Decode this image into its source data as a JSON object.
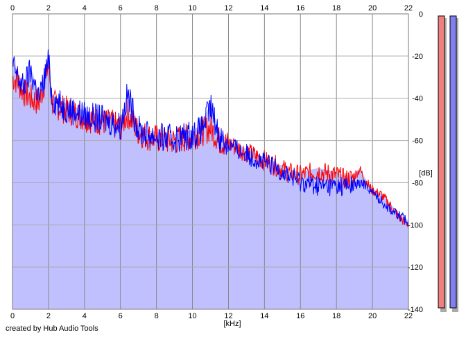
{
  "credit": "created by Hub Audio Tools",
  "chart_data": {
    "type": "area",
    "xlabel": "[kHz]",
    "ylabel": "[dB]",
    "xlim": [
      0,
      22
    ],
    "ylim": [
      -140,
      0
    ],
    "x_ticks": [
      0,
      2,
      4,
      6,
      8,
      10,
      12,
      14,
      16,
      18,
      20,
      22
    ],
    "y_ticks": [
      0,
      -20,
      -40,
      -60,
      -80,
      -100,
      -120,
      -140
    ],
    "grid": true,
    "fill_color": "#c0c0ff",
    "series": [
      {
        "color": "#ff0000",
        "x": [
          0.0,
          0.3,
          0.6,
          1.0,
          1.5,
          2.0,
          2.2,
          2.8,
          3.5,
          4.0,
          4.5,
          5.0,
          5.5,
          6.0,
          6.4,
          7.0,
          7.5,
          8.0,
          8.5,
          9.0,
          9.5,
          10.0,
          10.5,
          11.0,
          11.5,
          12.0,
          12.5,
          13.0,
          13.5,
          14.0,
          14.5,
          15.0,
          15.5,
          16.0,
          16.5,
          17.0,
          17.5,
          18.0,
          18.5,
          19.0,
          19.3,
          19.6,
          20.0,
          20.5,
          21.0,
          21.5,
          22.0
        ],
        "values": [
          -28,
          -30,
          -35,
          -38,
          -40,
          -22,
          -40,
          -43,
          -45,
          -47,
          -48,
          -49,
          -50,
          -52,
          -45,
          -54,
          -56,
          -57,
          -58,
          -58,
          -57,
          -56,
          -54,
          -52,
          -58,
          -60,
          -62,
          -64,
          -66,
          -68,
          -70,
          -72,
          -74,
          -75,
          -74,
          -73,
          -74,
          -75,
          -77,
          -76,
          -73,
          -78,
          -83,
          -85,
          -90,
          -96,
          -99
        ]
      },
      {
        "color": "#0000ff",
        "x": [
          0.0,
          0.3,
          0.6,
          1.0,
          1.5,
          2.0,
          2.2,
          2.8,
          3.5,
          4.0,
          4.5,
          5.0,
          5.5,
          6.0,
          6.4,
          7.0,
          7.5,
          8.0,
          8.5,
          9.0,
          9.5,
          10.0,
          10.5,
          11.0,
          11.5,
          12.0,
          12.5,
          13.0,
          13.5,
          14.0,
          14.5,
          15.0,
          15.5,
          16.0,
          16.5,
          17.0,
          17.5,
          18.0,
          18.5,
          19.0,
          19.3,
          19.6,
          20.0,
          20.5,
          21.0,
          21.5,
          22.0
        ],
        "values": [
          -22,
          -28,
          -33,
          -25,
          -38,
          -20,
          -38,
          -42,
          -44,
          -46,
          -47,
          -48,
          -49,
          -51,
          -36,
          -53,
          -55,
          -56,
          -57,
          -57,
          -56,
          -55,
          -53,
          -42,
          -56,
          -60,
          -63,
          -65,
          -67,
          -69,
          -71,
          -73,
          -76,
          -78,
          -79,
          -80,
          -80,
          -80,
          -80,
          -80,
          -80,
          -80,
          -84,
          -88,
          -92,
          -95,
          -98
        ]
      }
    ],
    "level_meters": [
      {
        "color": "#f08080"
      },
      {
        "color": "#8080f0"
      }
    ]
  }
}
